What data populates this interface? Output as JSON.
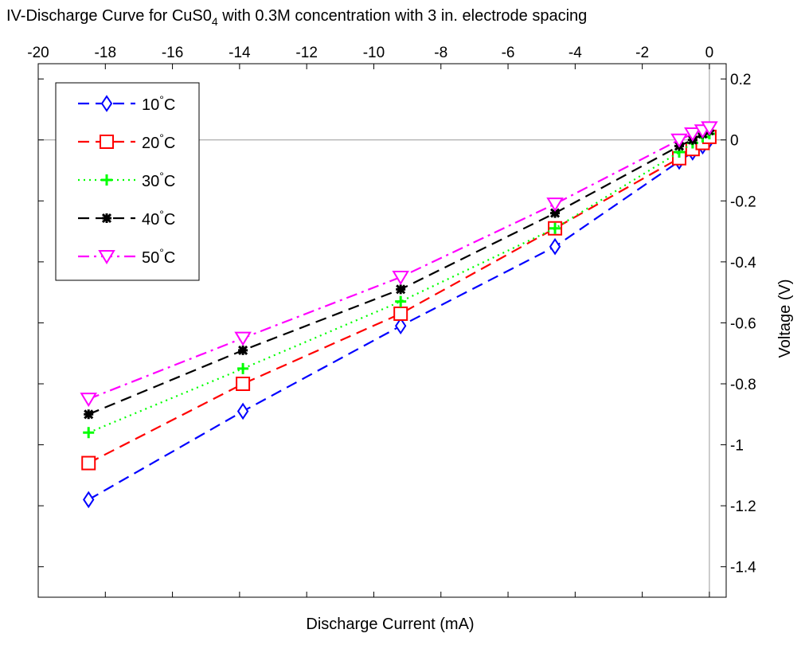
{
  "chart_data": {
    "type": "line",
    "title": {
      "prefix": "IV-Discharge Curve for CuS0",
      "subscript": "4",
      "suffix": " with 0.3M concentration with 3 in. electrode spacing"
    },
    "xlabel": "Discharge Current (mA)",
    "ylabel": "Voltage (V)",
    "xlim": [
      -20,
      0.5
    ],
    "ylim": [
      -1.5,
      0.25
    ],
    "x_axis_position": "top",
    "y_axis_position": "right",
    "xticks": [
      -20,
      -18,
      -16,
      -14,
      -12,
      -10,
      -8,
      -6,
      -4,
      -2,
      0
    ],
    "yticks": [
      0.2,
      0,
      -0.2,
      -0.4,
      -0.6,
      -0.8,
      -1,
      -1.2,
      -1.4
    ],
    "zero_lines": true,
    "grid": false,
    "legend": "top-left",
    "degree_symbol": "°",
    "series": [
      {
        "name": "10",
        "unit": "C",
        "color": "#0000ff",
        "dash": "dashed",
        "marker": "diamond",
        "x": [
          -18.5,
          -13.9,
          -9.2,
          -4.6,
          -0.9,
          -0.5,
          -0.2,
          0
        ],
        "y": [
          -1.18,
          -0.89,
          -0.61,
          -0.35,
          -0.07,
          -0.04,
          -0.02,
          0
        ]
      },
      {
        "name": "20",
        "unit": "C",
        "color": "#ff0000",
        "dash": "dashed",
        "marker": "square",
        "x": [
          -18.5,
          -13.9,
          -9.2,
          -4.6,
          -0.9,
          -0.5,
          -0.2,
          0
        ],
        "y": [
          -1.06,
          -0.8,
          -0.57,
          -0.29,
          -0.06,
          -0.03,
          -0.01,
          0.01
        ]
      },
      {
        "name": "30",
        "unit": "C",
        "color": "#00ff00",
        "dash": "dotted",
        "marker": "plus",
        "x": [
          -18.5,
          -13.9,
          -9.2,
          -4.6,
          -0.9,
          -0.5,
          -0.2,
          0
        ],
        "y": [
          -0.96,
          -0.75,
          -0.53,
          -0.29,
          -0.04,
          -0.01,
          0.01,
          0.02
        ]
      },
      {
        "name": "40",
        "unit": "C",
        "color": "#000000",
        "dash": "dashed",
        "marker": "star",
        "x": [
          -18.5,
          -13.9,
          -9.2,
          -4.6,
          -0.9,
          -0.5,
          -0.2,
          0
        ],
        "y": [
          -0.9,
          -0.69,
          -0.49,
          -0.24,
          -0.02,
          0,
          0.02,
          0.03
        ]
      },
      {
        "name": "50",
        "unit": "C",
        "color": "#ff00ff",
        "dash": "dashdot",
        "marker": "triangle-down",
        "x": [
          -18.5,
          -13.9,
          -9.2,
          -4.6,
          -0.9,
          -0.5,
          -0.2,
          0
        ],
        "y": [
          -0.85,
          -0.65,
          -0.45,
          -0.21,
          0,
          0.02,
          0.03,
          0.04
        ]
      }
    ]
  }
}
